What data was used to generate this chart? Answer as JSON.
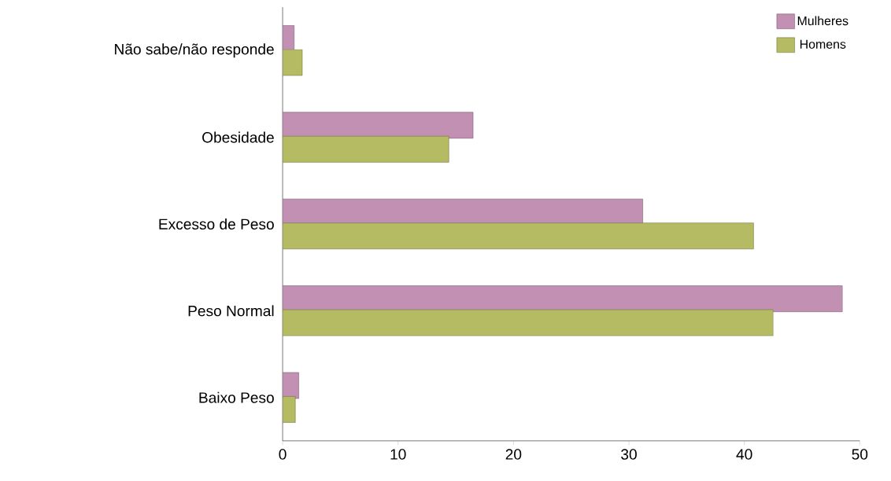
{
  "chart_data": {
    "type": "bar",
    "orientation": "horizontal",
    "categories": [
      "Não sabe/não responde",
      "Obesidade",
      "Excesso de Peso",
      "Peso Normal",
      "Baixo Peso"
    ],
    "series": [
      {
        "name": "Mulheres",
        "color": "#c290b2",
        "values": [
          1.0,
          16.5,
          31.2,
          48.5,
          1.4
        ]
      },
      {
        "name": "Homens",
        "color": "#b4bb62",
        "values": [
          1.7,
          14.4,
          40.8,
          42.5,
          1.1
        ]
      }
    ],
    "xlim": [
      0,
      50
    ],
    "xticks": [
      0,
      10,
      20,
      30,
      40,
      50
    ],
    "legend": "top right",
    "grid": false
  }
}
